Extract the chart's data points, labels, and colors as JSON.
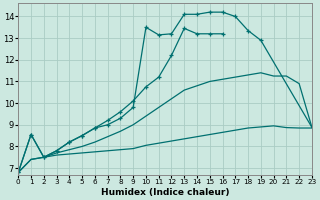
{
  "xlabel": "Humidex (Indice chaleur)",
  "xlim": [
    0,
    23
  ],
  "ylim": [
    6.7,
    14.6
  ],
  "yticks": [
    7,
    8,
    9,
    10,
    11,
    12,
    13,
    14
  ],
  "xticks": [
    0,
    1,
    2,
    3,
    4,
    5,
    6,
    7,
    8,
    9,
    10,
    11,
    12,
    13,
    14,
    15,
    16,
    17,
    18,
    19,
    20,
    21,
    22,
    23
  ],
  "background_color": "#cce8e0",
  "grid_color": "#aaccc4",
  "line_color": "#007070",
  "curve1_x": [
    0,
    1,
    2,
    3,
    4,
    5,
    6,
    7,
    8,
    9,
    10,
    11,
    12,
    13,
    14,
    15,
    16
  ],
  "curve1_y": [
    6.8,
    8.55,
    7.5,
    7.8,
    8.2,
    8.5,
    8.85,
    9.2,
    9.6,
    10.1,
    10.75,
    11.2,
    12.2,
    13.45,
    13.2,
    13.2,
    13.2
  ],
  "curve1_marker": true,
  "curve2_x": [
    0,
    1,
    2,
    3,
    4,
    5,
    6,
    7,
    8,
    9,
    10,
    11,
    12,
    13,
    14,
    15,
    16,
    17,
    18,
    19
  ],
  "curve2_y": [
    6.8,
    8.55,
    7.5,
    7.8,
    8.2,
    8.5,
    8.85,
    9.0,
    9.3,
    9.8,
    13.5,
    13.15,
    13.2,
    14.1,
    14.1,
    14.2,
    14.2,
    14.0,
    13.35,
    12.9
  ],
  "curve2_marker": true,
  "curve3_x": [
    0,
    1,
    2,
    3,
    4,
    5,
    6,
    7,
    8,
    9,
    10,
    11,
    12,
    13,
    14,
    15,
    16,
    17,
    18,
    19,
    20,
    21,
    22,
    23
  ],
  "curve3_y": [
    6.8,
    7.4,
    7.5,
    7.6,
    7.65,
    7.7,
    7.75,
    7.8,
    7.85,
    7.9,
    8.05,
    8.15,
    8.25,
    8.35,
    8.45,
    8.55,
    8.65,
    8.75,
    8.85,
    8.9,
    8.95,
    8.87,
    8.85,
    8.85
  ],
  "curve3_marker": false,
  "curve4_x": [
    0,
    1,
    2,
    3,
    4,
    5,
    6,
    7,
    8,
    9,
    10,
    11,
    12,
    13,
    14,
    15,
    16,
    17,
    18,
    19,
    20,
    21,
    22,
    23
  ],
  "curve4_y": [
    6.8,
    7.4,
    7.5,
    7.7,
    7.85,
    8.0,
    8.2,
    8.45,
    8.7,
    9.0,
    9.4,
    9.8,
    10.2,
    10.6,
    10.8,
    11.0,
    11.1,
    11.2,
    11.3,
    11.4,
    11.25,
    11.25,
    10.9,
    8.88
  ],
  "curve4_marker": false
}
